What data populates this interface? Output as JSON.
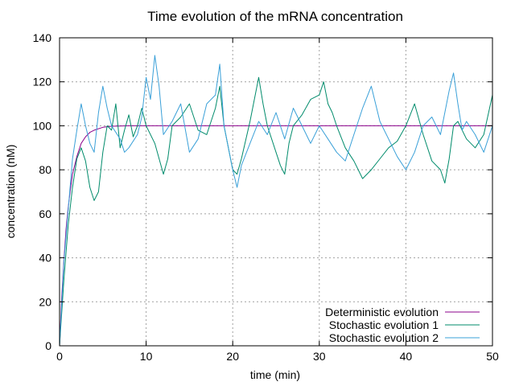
{
  "chart_data": {
    "type": "line",
    "title": "Time evolution of the mRNA concentration",
    "xlabel": "time (min)",
    "ylabel": "concentration (nM)",
    "xlim": [
      0,
      50
    ],
    "ylim": [
      0,
      140
    ],
    "xticks": [
      0,
      10,
      20,
      30,
      40,
      50
    ],
    "yticks": [
      0,
      20,
      40,
      60,
      80,
      100,
      120,
      140
    ],
    "grid": true,
    "legend_position": "bottom-right",
    "series": [
      {
        "name": "Deterministic evolution",
        "color": "#8b008b",
        "x": [
          0,
          0.25,
          0.5,
          0.75,
          1,
          1.25,
          1.5,
          2,
          2.5,
          3,
          3.5,
          4,
          5,
          6,
          8,
          10,
          15,
          20,
          30,
          40,
          50
        ],
        "y": [
          0,
          22,
          39,
          53,
          63,
          71,
          78,
          86,
          92,
          95,
          97,
          98,
          99.3,
          99.8,
          100,
          100,
          100,
          100,
          100,
          100,
          100
        ]
      },
      {
        "name": "Stochastic evolution 1",
        "color": "#008b6b",
        "x": [
          0,
          0.5,
          1,
          1.5,
          2,
          2.5,
          3,
          3.5,
          4,
          4.5,
          5,
          5.5,
          6,
          6.5,
          7,
          7.5,
          8,
          8.5,
          9,
          9.5,
          10,
          11,
          12,
          12.5,
          13,
          14,
          15,
          16,
          17,
          18,
          18.5,
          19,
          20,
          20.5,
          21,
          22,
          22.5,
          23,
          23.5,
          24,
          25,
          25.5,
          26,
          26.5,
          27,
          28,
          29,
          30,
          30.5,
          31,
          31.5,
          32,
          33,
          34,
          35,
          36,
          37,
          38,
          39,
          40,
          41,
          42,
          43,
          44,
          44.5,
          45,
          45.5,
          46,
          47,
          48,
          49,
          50
        ],
        "y": [
          0,
          30,
          55,
          72,
          85,
          90,
          84,
          72,
          66,
          70,
          88,
          100,
          98,
          110,
          90,
          98,
          105,
          95,
          100,
          108,
          100,
          92,
          78,
          85,
          100,
          104,
          110,
          98,
          96,
          108,
          118,
          100,
          80,
          78,
          85,
          102,
          112,
          122,
          110,
          100,
          88,
          82,
          78,
          92,
          100,
          105,
          112,
          114,
          120,
          110,
          106,
          100,
          90,
          84,
          76,
          80,
          85,
          90,
          93,
          100,
          110,
          96,
          84,
          80,
          74,
          85,
          100,
          102,
          94,
          90,
          96,
          114
        ]
      },
      {
        "name": "Stochastic evolution 2",
        "color": "#3aa0d8",
        "x": [
          0,
          0.5,
          1,
          1.5,
          2,
          2.5,
          3,
          3.5,
          4,
          4.5,
          5,
          5.5,
          6,
          7,
          7.5,
          8,
          9,
          9.5,
          10,
          10.5,
          11,
          11.5,
          12,
          13,
          14,
          15,
          16,
          17,
          18,
          18.5,
          19,
          20,
          20.5,
          21,
          22,
          23,
          24,
          25,
          26,
          27,
          28,
          29,
          30,
          31,
          32,
          33,
          34,
          35,
          36,
          37,
          38,
          39,
          40,
          41,
          42,
          43,
          44,
          45,
          45.5,
          46,
          46.5,
          47,
          48,
          49,
          50
        ],
        "y": [
          0,
          38,
          62,
          85,
          98,
          110,
          100,
          92,
          88,
          106,
          118,
          108,
          100,
          94,
          88,
          90,
          96,
          104,
          122,
          112,
          132,
          118,
          96,
          102,
          110,
          88,
          94,
          110,
          114,
          128,
          100,
          80,
          72,
          82,
          92,
          102,
          96,
          106,
          94,
          108,
          100,
          92,
          100,
          94,
          88,
          84,
          96,
          108,
          118,
          102,
          94,
          86,
          80,
          88,
          100,
          104,
          96,
          116,
          124,
          110,
          98,
          102,
          96,
          88,
          100
        ]
      }
    ]
  }
}
